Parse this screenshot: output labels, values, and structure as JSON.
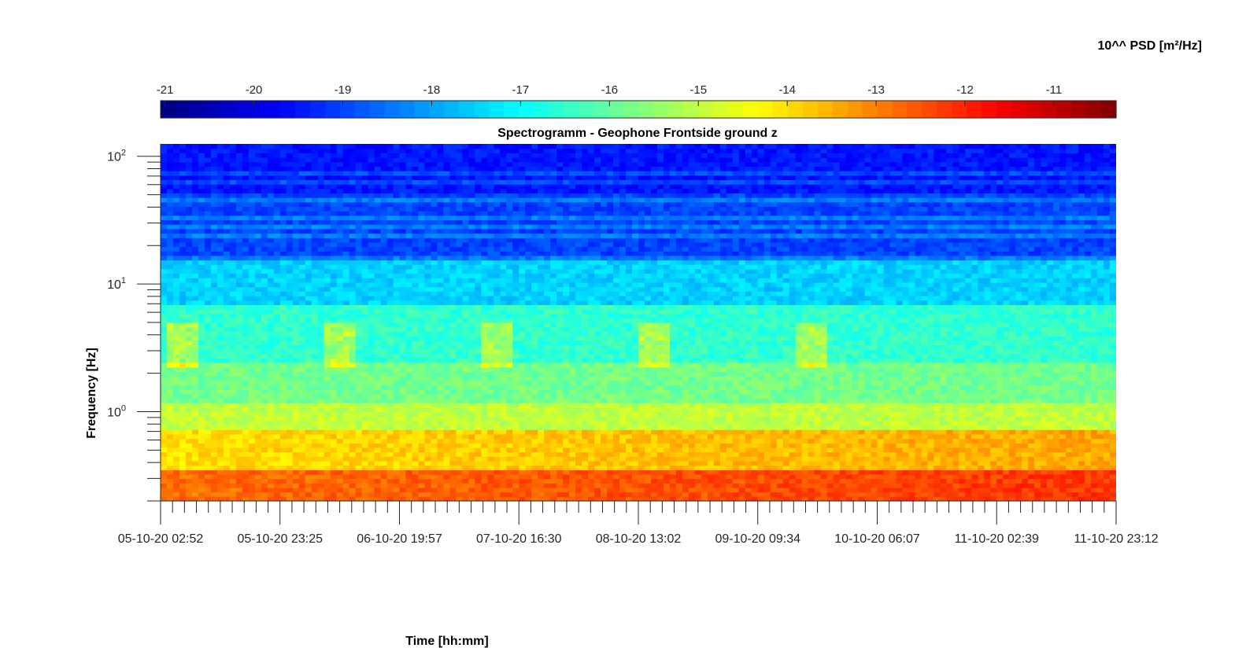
{
  "chart_data": {
    "type": "heatmap",
    "title": "Spectrogramm - Geophone Frontside ground z",
    "xlabel": "Time [hh:mm]",
    "ylabel": "Frequency [Hz]",
    "colorbar_label": "10^^ PSD [m²/Hz]",
    "colormap": "jet",
    "colorbar_ticks": [
      -21,
      -20,
      -19,
      -18,
      -17,
      -16,
      -15,
      -14,
      -13,
      -12,
      -11
    ],
    "colorbar_range": [
      -21.05,
      -10.3
    ],
    "y_scale": "log",
    "y_ticks": [
      {
        "base": "10",
        "exp": "0"
      },
      {
        "base": "10",
        "exp": "1"
      },
      {
        "base": "10",
        "exp": "2"
      }
    ],
    "ylim": [
      0.2,
      125
    ],
    "x_tick_labels": [
      "05-10-20 02:52",
      "05-10-20 23:25",
      "06-10-20 19:57",
      "07-10-20 16:30",
      "08-10-20 13:02",
      "09-10-20 09:34",
      "10-10-20 06:07",
      "11-10-20 02:39",
      "11-10-20 23:12"
    ],
    "xlim": [
      "05-10-20 02:52",
      "11-10-20 23:12"
    ],
    "frequency_bands": [
      {
        "freq_range_hz": [
          50,
          125
        ],
        "log10_psd": -19.5
      },
      {
        "freq_range_hz": [
          15,
          50
        ],
        "log10_psd": -19
      },
      {
        "freq_range_hz": [
          7,
          15
        ],
        "log10_psd": -17.5
      },
      {
        "freq_range_hz": [
          2.5,
          7
        ],
        "log10_psd": -16.5
      },
      {
        "freq_range_hz": [
          1.2,
          2.5
        ],
        "log10_psd": -15.8
      },
      {
        "freq_range_hz": [
          0.75,
          1.2
        ],
        "log10_psd": -15
      },
      {
        "freq_range_hz": [
          0.35,
          0.75
        ],
        "log10_psd": -13.8
      },
      {
        "freq_range_hz": [
          0.2,
          0.35
        ],
        "log10_psd": -12.6
      }
    ]
  }
}
